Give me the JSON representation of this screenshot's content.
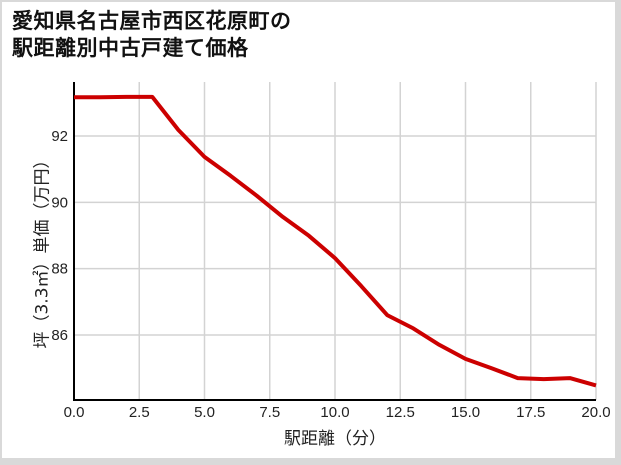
{
  "title": {
    "line1": "愛知県名古屋市西区花原町の",
    "line2": "駅距離別中古戸建て価格"
  },
  "axes": {
    "xlabel": "駅距離（分）",
    "ylabel": "坪（3.3㎡）単価（万円）",
    "xticks": [
      "0.0",
      "2.5",
      "5.0",
      "7.5",
      "10.0",
      "12.5",
      "15.0",
      "17.5",
      "20.0"
    ],
    "yticks": [
      "86",
      "88",
      "90",
      "92"
    ]
  },
  "colors": {
    "line": "#cc0000",
    "grid": "#d3d3d3",
    "axis": "#000000"
  },
  "chart_data": {
    "type": "line",
    "title": "愛知県名古屋市西区花原町の駅距離別中古戸建て価格",
    "xlabel": "駅距離（分）",
    "ylabel": "坪（3.3㎡）単価（万円）",
    "xlim": [
      0,
      20
    ],
    "ylim": [
      84.0,
      93.6
    ],
    "grid": true,
    "legend": null,
    "x": [
      0,
      1,
      2,
      3,
      4,
      5,
      6,
      7,
      8,
      9,
      10,
      11,
      12,
      13,
      14,
      15,
      16,
      17,
      18,
      19,
      20
    ],
    "series": [
      {
        "name": "坪単価",
        "color": "#cc0000",
        "values": [
          93.17,
          93.17,
          93.18,
          93.18,
          92.18,
          91.37,
          90.8,
          90.2,
          89.56,
          88.99,
          88.32,
          87.48,
          86.6,
          86.2,
          85.7,
          85.28,
          85.0,
          84.7,
          84.67,
          84.7,
          84.48
        ]
      }
    ]
  }
}
